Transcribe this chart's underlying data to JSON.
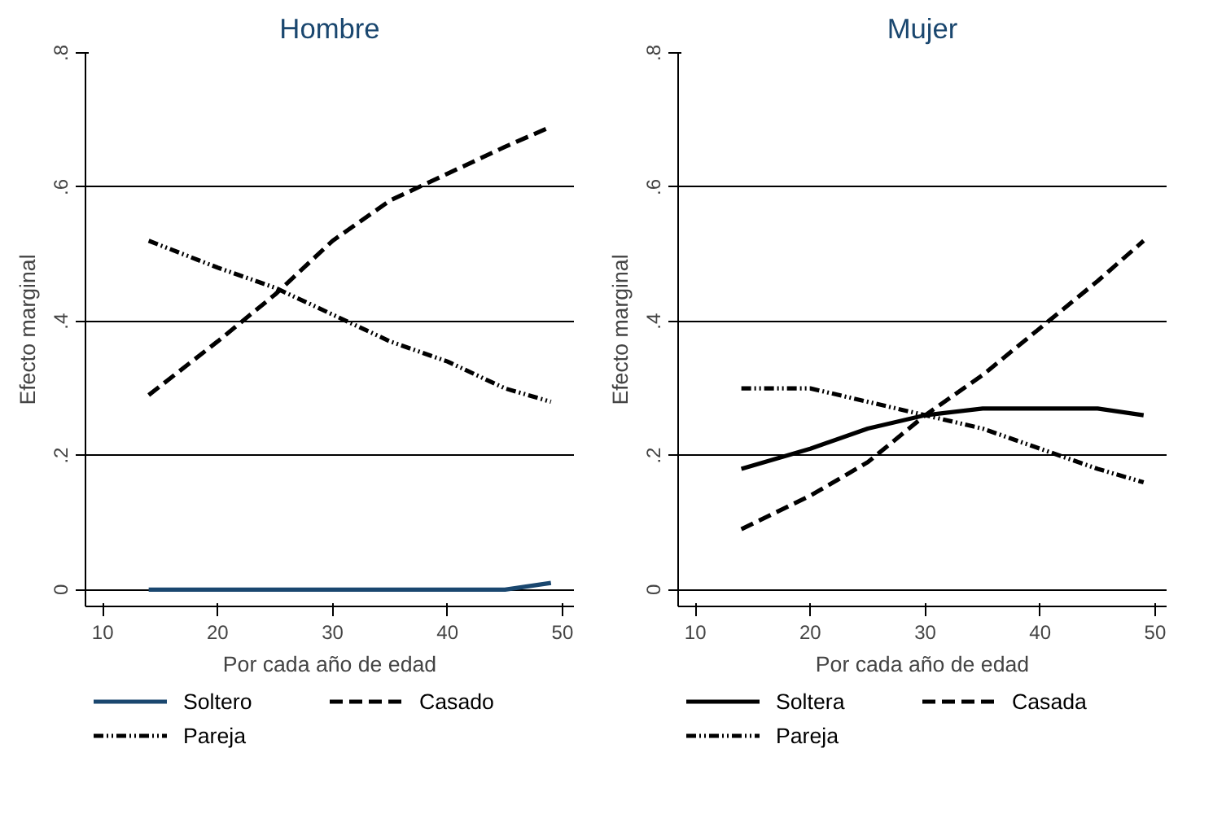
{
  "chart_data": [
    {
      "type": "line",
      "title": "Hombre",
      "xlabel": "Por cada año de edad",
      "ylabel": "Efecto marginal",
      "x": [
        14,
        20,
        25,
        30,
        35,
        40,
        45,
        49
      ],
      "series": [
        {
          "name": "Soltero",
          "color": "#1a476f",
          "line_style": "solid",
          "values": [
            0,
            0,
            0,
            0,
            0,
            0,
            0,
            0.01
          ]
        },
        {
          "name": "Casado",
          "color": "#000000",
          "line_style": "dashed",
          "values": [
            0.29,
            0.37,
            0.44,
            0.52,
            0.58,
            0.62,
            0.66,
            0.69
          ]
        },
        {
          "name": "Pareja",
          "color": "#000000",
          "line_style": "dotted",
          "values": [
            0.52,
            0.48,
            0.45,
            0.41,
            0.37,
            0.34,
            0.3,
            0.28
          ]
        }
      ],
      "xlim": [
        8.5,
        51
      ],
      "ylim": [
        -0.025,
        0.8
      ],
      "xticks": [
        10,
        20,
        30,
        40,
        50
      ],
      "yticks": [
        {
          "value": 0,
          "label": "0"
        },
        {
          "value": 0.2,
          "label": ".2"
        },
        {
          "value": 0.4,
          "label": ".4"
        },
        {
          "value": 0.6,
          "label": ".6"
        },
        {
          "value": 0.8,
          "label": ".8"
        }
      ],
      "grid": "y",
      "legend": "bottom",
      "marker": "none"
    },
    {
      "type": "line",
      "title": "Mujer",
      "xlabel": "Por cada año de edad",
      "ylabel": "Efecto marginal",
      "x": [
        14,
        20,
        25,
        30,
        35,
        40,
        45,
        49
      ],
      "series": [
        {
          "name": "Soltera",
          "color": "#000000",
          "line_style": "solid",
          "values": [
            0.18,
            0.21,
            0.24,
            0.26,
            0.27,
            0.27,
            0.27,
            0.26
          ]
        },
        {
          "name": "Casada",
          "color": "#000000",
          "line_style": "dashed",
          "values": [
            0.09,
            0.14,
            0.19,
            0.26,
            0.32,
            0.39,
            0.46,
            0.52
          ]
        },
        {
          "name": "Pareja",
          "color": "#000000",
          "line_style": "dotted",
          "values": [
            0.3,
            0.3,
            0.28,
            0.26,
            0.24,
            0.21,
            0.18,
            0.16
          ]
        }
      ],
      "xlim": [
        8.5,
        51
      ],
      "ylim": [
        -0.025,
        0.8
      ],
      "xticks": [
        10,
        20,
        30,
        40,
        50
      ],
      "yticks": [
        {
          "value": 0,
          "label": "0"
        },
        {
          "value": 0.2,
          "label": ".2"
        },
        {
          "value": 0.4,
          "label": ".4"
        },
        {
          "value": 0.6,
          "label": ".6"
        },
        {
          "value": 0.8,
          "label": ".8"
        }
      ],
      "grid": "y",
      "legend": "bottom",
      "marker": "none"
    }
  ]
}
